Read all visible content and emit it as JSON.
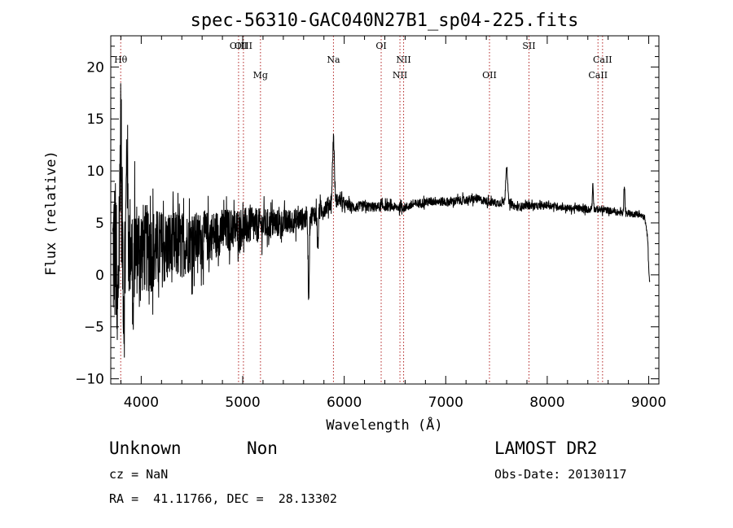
{
  "chart_data": {
    "type": "line",
    "title": "spec-56310-GAC040N27B1_sp04-225.fits",
    "xlabel": "Wavelength (Å)",
    "ylabel": "Flux (relative)",
    "xlim": [
      3700,
      9100
    ],
    "ylim": [
      -10.5,
      23
    ],
    "x_ticks": [
      "4000",
      "5000",
      "6000",
      "7000",
      "8000",
      "9000"
    ],
    "y_ticks": [
      "−10",
      "−5",
      "0",
      "5",
      "10",
      "15",
      "20"
    ],
    "x_tick_values": [
      4000,
      5000,
      6000,
      7000,
      8000,
      9000
    ],
    "y_tick_values": [
      -10,
      -5,
      0,
      5,
      10,
      15,
      20
    ],
    "emission_lines": [
      {
        "label": "Hθ",
        "wavelength": 3798,
        "row": 1
      },
      {
        "label": "OIII",
        "wavelength": 4959,
        "row": 0
      },
      {
        "label": "OIII",
        "wavelength": 5007,
        "row": 0
      },
      {
        "label": "Mg",
        "wavelength": 5175,
        "row": 2
      },
      {
        "label": "Na",
        "wavelength": 5894,
        "row": 1
      },
      {
        "label": "OI",
        "wavelength": 6364,
        "row": 0
      },
      {
        "label": "NII",
        "wavelength": 6549,
        "row": 2
      },
      {
        "label": "NII",
        "wavelength": 6585,
        "row": 1
      },
      {
        "label": "OII",
        "wavelength": 7431,
        "row": 2
      },
      {
        "label": "SII",
        "wavelength": 7820,
        "row": 0
      },
      {
        "label": "CaII",
        "wavelength": 8500,
        "row": 2
      },
      {
        "label": "CaII",
        "wavelength": 8545,
        "row": 1
      }
    ],
    "spectrum_profile": [
      [
        3720,
        2.0
      ],
      [
        3760,
        2.5
      ],
      [
        3800,
        3.0
      ],
      [
        3900,
        2.8
      ],
      [
        4000,
        2.6
      ],
      [
        4100,
        2.4
      ],
      [
        4200,
        2.5
      ],
      [
        4300,
        2.7
      ],
      [
        4400,
        2.9
      ],
      [
        4500,
        3.2
      ],
      [
        4600,
        3.5
      ],
      [
        4700,
        3.8
      ],
      [
        4800,
        4.2
      ],
      [
        4900,
        4.4
      ],
      [
        5000,
        4.6
      ],
      [
        5100,
        4.7
      ],
      [
        5200,
        4.8
      ],
      [
        5300,
        4.9
      ],
      [
        5400,
        5.0
      ],
      [
        5500,
        5.2
      ],
      [
        5600,
        5.4
      ],
      [
        5700,
        5.8
      ],
      [
        5800,
        6.4
      ],
      [
        5880,
        7.0
      ],
      [
        5950,
        7.2
      ],
      [
        6000,
        6.8
      ],
      [
        6100,
        6.5
      ],
      [
        6200,
        6.6
      ],
      [
        6300,
        6.5
      ],
      [
        6400,
        6.6
      ],
      [
        6500,
        6.5
      ],
      [
        6600,
        6.5
      ],
      [
        6700,
        6.8
      ],
      [
        6800,
        7.0
      ],
      [
        6900,
        7.1
      ],
      [
        7000,
        7.0
      ],
      [
        7100,
        7.1
      ],
      [
        7200,
        7.2
      ],
      [
        7300,
        7.3
      ],
      [
        7400,
        7.1
      ],
      [
        7500,
        6.9
      ],
      [
        7600,
        7.0
      ],
      [
        7700,
        6.5
      ],
      [
        7800,
        6.7
      ],
      [
        7900,
        6.6
      ],
      [
        8000,
        6.7
      ],
      [
        8100,
        6.6
      ],
      [
        8200,
        6.4
      ],
      [
        8300,
        6.4
      ],
      [
        8400,
        6.3
      ],
      [
        8500,
        6.3
      ],
      [
        8600,
        6.2
      ],
      [
        8700,
        6.0
      ],
      [
        8800,
        5.9
      ],
      [
        8900,
        5.8
      ],
      [
        8960,
        5.5
      ],
      [
        8990,
        3.5
      ],
      [
        9000,
        0.5
      ],
      [
        9010,
        -0.3
      ]
    ],
    "noise_profile": [
      [
        3720,
        8.0
      ],
      [
        3800,
        7.5
      ],
      [
        3900,
        5.0
      ],
      [
        4000,
        4.5
      ],
      [
        4200,
        3.8
      ],
      [
        4400,
        3.2
      ],
      [
        4600,
        2.6
      ],
      [
        4800,
        2.2
      ],
      [
        5000,
        1.9
      ],
      [
        5200,
        1.6
      ],
      [
        5400,
        1.3
      ],
      [
        5600,
        1.1
      ],
      [
        5800,
        0.9
      ],
      [
        6000,
        0.55
      ],
      [
        6500,
        0.45
      ],
      [
        7000,
        0.45
      ],
      [
        7500,
        0.4
      ],
      [
        8000,
        0.35
      ],
      [
        8500,
        0.35
      ],
      [
        9000,
        0.3
      ]
    ],
    "spectrum_features": [
      {
        "wavelength": 3765,
        "height": -9.5,
        "width": 6
      },
      {
        "wavelength": 3798,
        "height": 13.0,
        "width": 6
      },
      {
        "wavelength": 3830,
        "height": -6.0,
        "width": 5
      },
      {
        "wavelength": 3860,
        "height": 10.0,
        "width": 6
      },
      {
        "wavelength": 3920,
        "height": -8.0,
        "width": 5
      },
      {
        "wavelength": 5650,
        "height": -7.5,
        "width": 6
      },
      {
        "wavelength": 5740,
        "height": -4.0,
        "width": 5
      },
      {
        "wavelength": 5894,
        "height": 6.2,
        "width": 9
      },
      {
        "wavelength": 7600,
        "height": 3.6,
        "width": 9
      },
      {
        "wavelength": 8450,
        "height": 2.5,
        "width": 5
      },
      {
        "wavelength": 8760,
        "height": 2.8,
        "width": 5
      }
    ],
    "sample_step": 2,
    "grid": false,
    "legend": "none"
  },
  "info": {
    "class": "Unknown",
    "subclass": "Non",
    "survey": "LAMOST DR2",
    "cz": "cz = NaN",
    "obs_date": "Obs-Date: 20130117",
    "coords": "RA =  41.11766, DEC =  28.13302"
  },
  "colors": {
    "spectrum": "#000000",
    "marker_lines": "#b22222",
    "axes": "#000000"
  }
}
